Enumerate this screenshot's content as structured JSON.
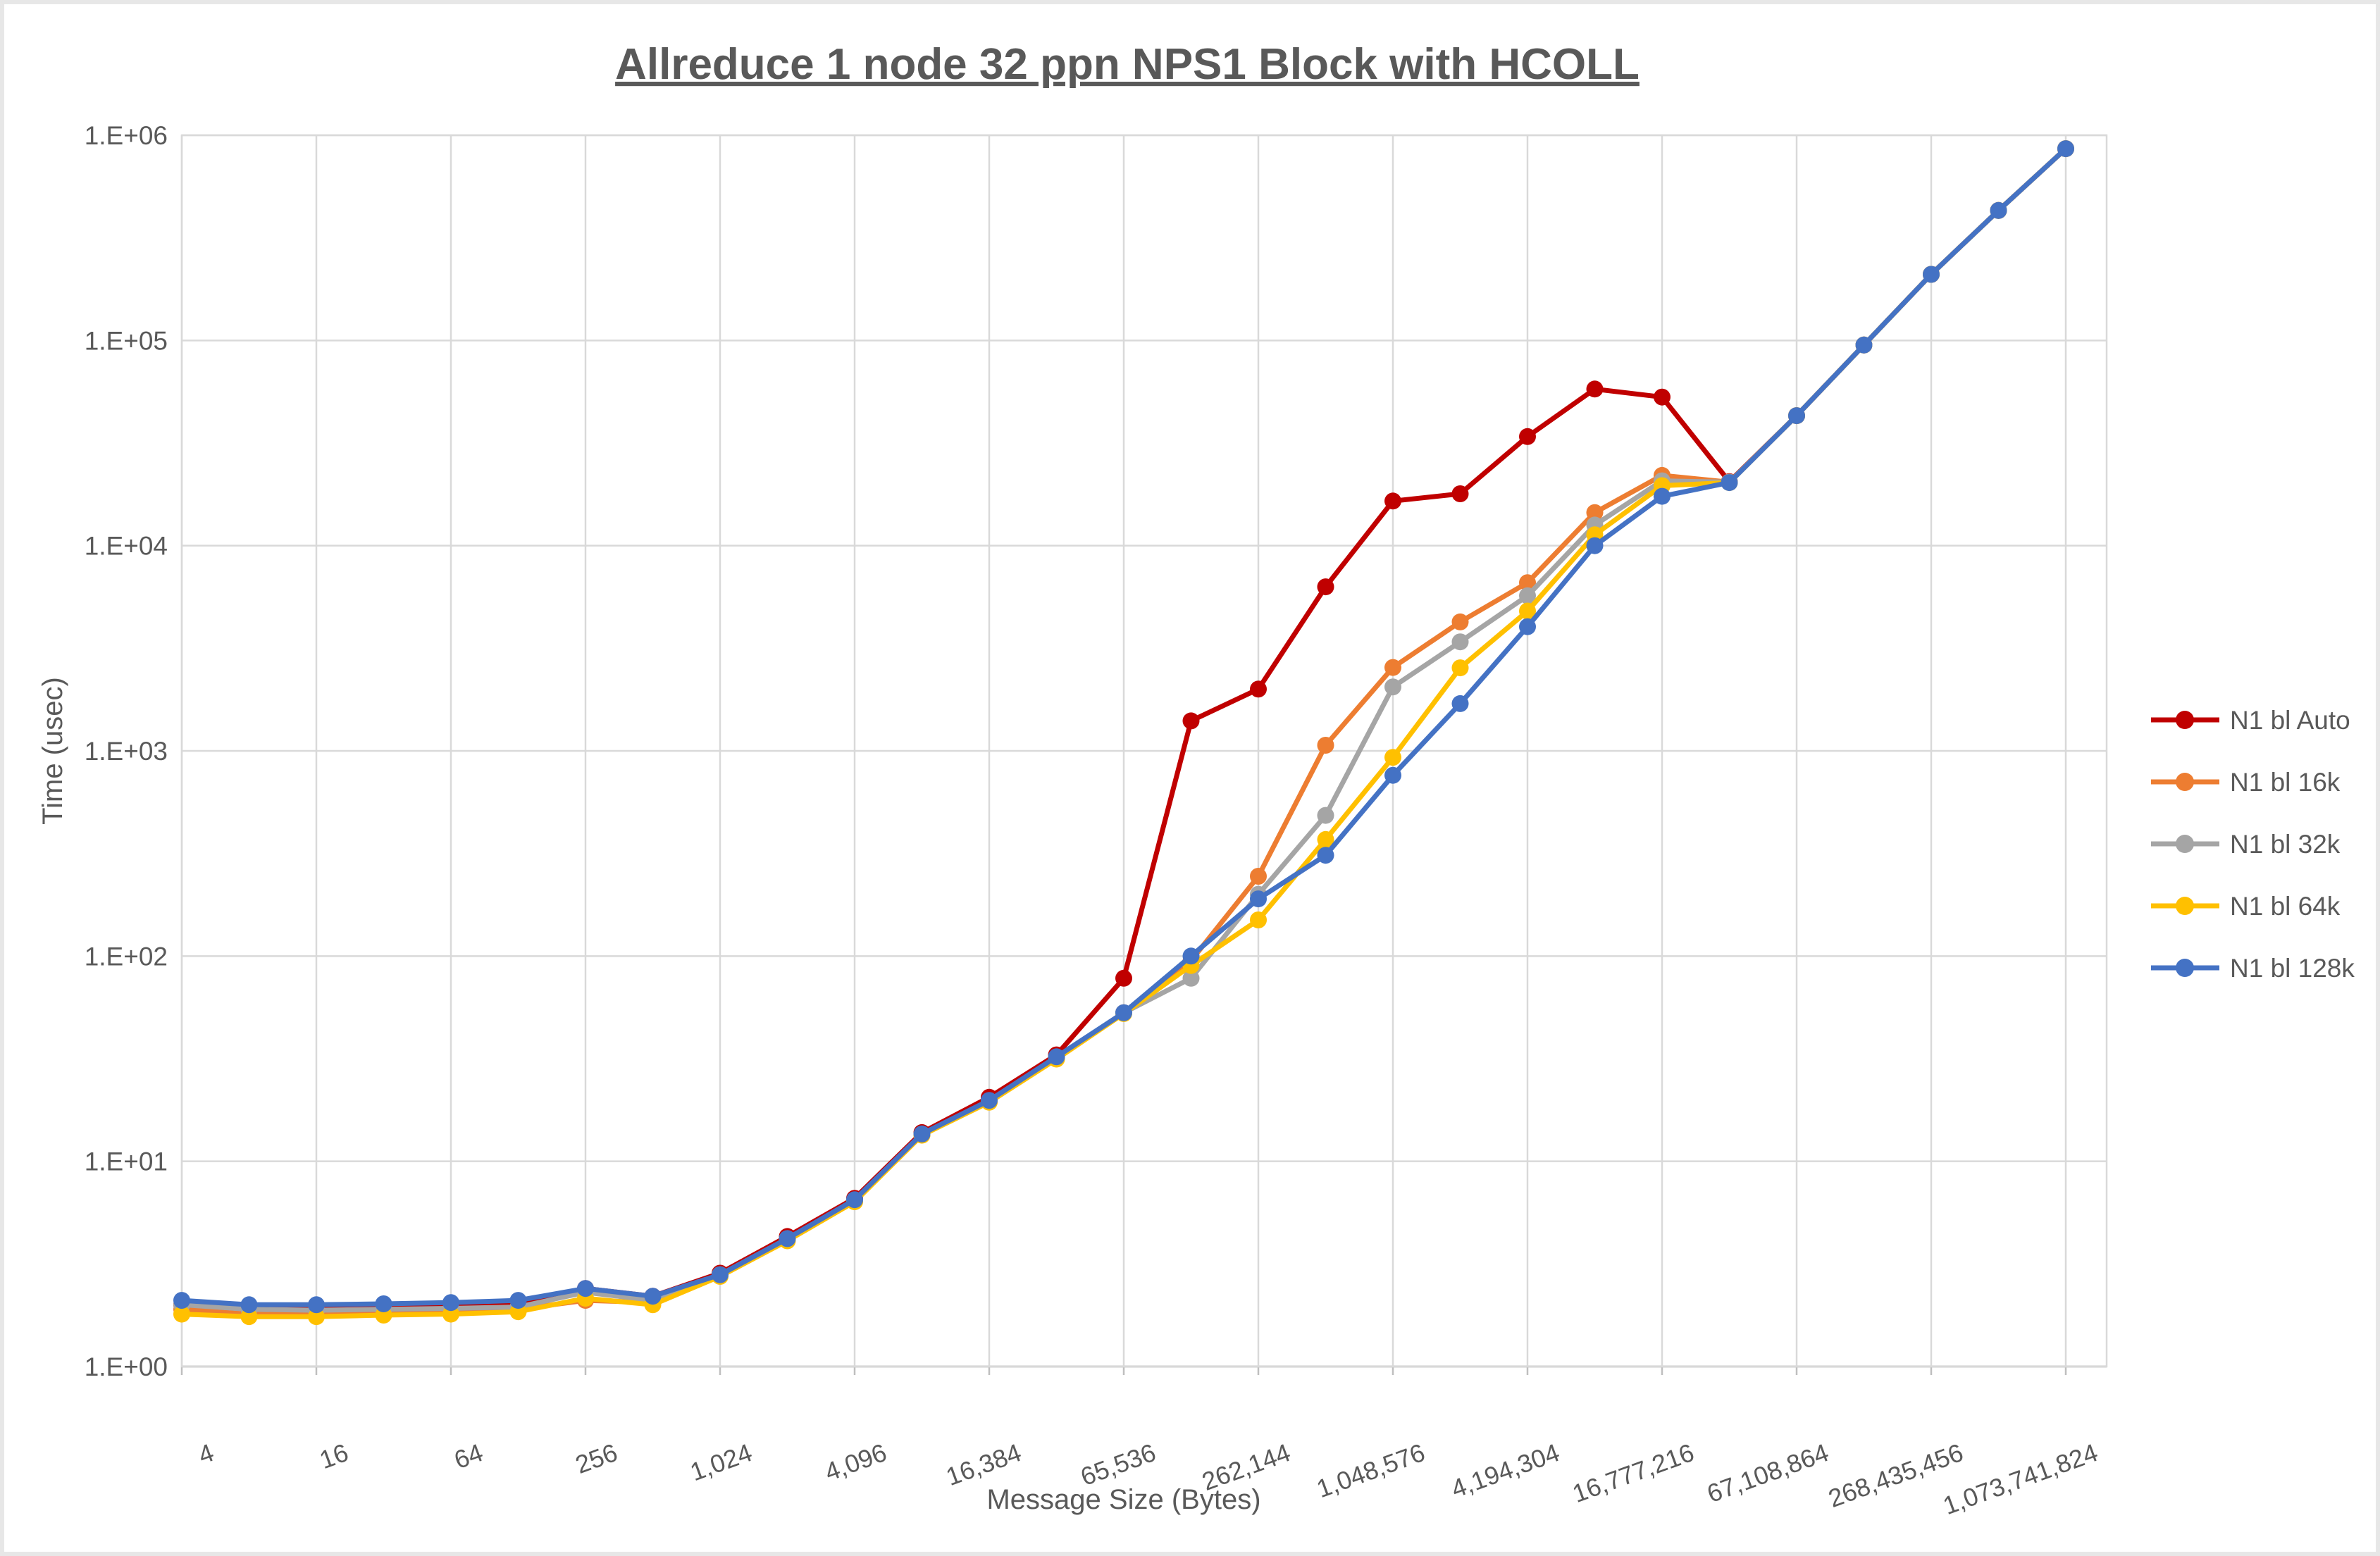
{
  "title": "Allreduce 1 node 32 ppn NPS1 Block with HCOLL",
  "chart_data": {
    "type": "line",
    "title": "Allreduce 1 node 32 ppn NPS1 Block with HCOLL",
    "xlabel": "Message Size (Bytes)",
    "ylabel": "Time (usec)",
    "x_scale": "log2",
    "y_scale": "log10",
    "ylim": [
      1,
      1000000
    ],
    "grid": true,
    "legend_position": "right",
    "y_tick_labels": [
      "1.E+00",
      "1.E+01",
      "1.E+02",
      "1.E+03",
      "1.E+04",
      "1.E+05",
      "1.E+06"
    ],
    "x_tick_labels": [
      "4",
      "16",
      "64",
      "256",
      "1,024",
      "4,096",
      "16,384",
      "65,536",
      "262,144",
      "1,048,576",
      "4,194,304",
      "16,777,216",
      "67,108,864",
      "268,435,456",
      "1,073,741,824"
    ],
    "x": [
      4,
      8,
      16,
      32,
      64,
      128,
      256,
      512,
      1024,
      2048,
      4096,
      8192,
      16384,
      32768,
      65536,
      131072,
      262144,
      524288,
      1048576,
      2097152,
      4194304,
      8388608,
      16777216,
      33554432,
      67108864,
      134217728,
      268435456,
      536870912,
      1073741824
    ],
    "series": [
      {
        "name": "N1 bl Auto",
        "color": "#C00000",
        "values": [
          2.0,
          1.95,
          1.95,
          2.0,
          2.0,
          2.05,
          2.4,
          2.2,
          2.85,
          4.3,
          6.6,
          13.8,
          20.5,
          33,
          78,
          1400,
          2000,
          6300,
          16500,
          17900,
          34000,
          58000,
          53000,
          20500,
          43000,
          95000,
          210000,
          430000,
          860000
        ]
      },
      {
        "name": "N1 bl 16k",
        "color": "#ED7D31",
        "values": [
          1.9,
          1.8,
          1.8,
          1.82,
          1.85,
          1.9,
          2.1,
          2.05,
          2.8,
          4.15,
          6.4,
          13.5,
          19.5,
          32,
          53,
          95,
          245,
          1065,
          2550,
          4250,
          6600,
          14500,
          22000,
          20400,
          43000,
          95000,
          210000,
          430000,
          860000
        ]
      },
      {
        "name": "N1 bl 32k",
        "color": "#A5A5A5",
        "values": [
          2.0,
          1.9,
          1.88,
          1.9,
          1.92,
          1.95,
          2.3,
          2.1,
          2.8,
          4.2,
          6.45,
          13.5,
          19.6,
          32,
          53,
          78,
          200,
          485,
          2050,
          3400,
          5700,
          12600,
          20700,
          20400,
          43000,
          95000,
          210000,
          430000,
          860000
        ]
      },
      {
        "name": "N1 bl 64k",
        "color": "#FFC000",
        "values": [
          1.8,
          1.75,
          1.75,
          1.78,
          1.8,
          1.85,
          2.15,
          2.0,
          2.75,
          4.1,
          6.35,
          13.4,
          19.4,
          31.5,
          52.5,
          90,
          150,
          370,
          930,
          2540,
          4800,
          11300,
          19600,
          20300,
          43000,
          95000,
          210000,
          430000,
          860000
        ]
      },
      {
        "name": "N1 bl 128k",
        "color": "#4472C4",
        "values": [
          2.1,
          2.0,
          2.0,
          2.02,
          2.05,
          2.1,
          2.4,
          2.2,
          2.8,
          4.2,
          6.5,
          13.6,
          19.8,
          32.3,
          53,
          100,
          190,
          310,
          760,
          1700,
          4030,
          10000,
          17400,
          20300,
          43000,
          95000,
          210000,
          430000,
          860000
        ]
      }
    ],
    "colors": {
      "text": "#595959",
      "gridline": "#D9D9D9",
      "axis_line": "#BFBFBF",
      "frame": "#E7E7E7",
      "background": "#FFFFFF"
    }
  }
}
